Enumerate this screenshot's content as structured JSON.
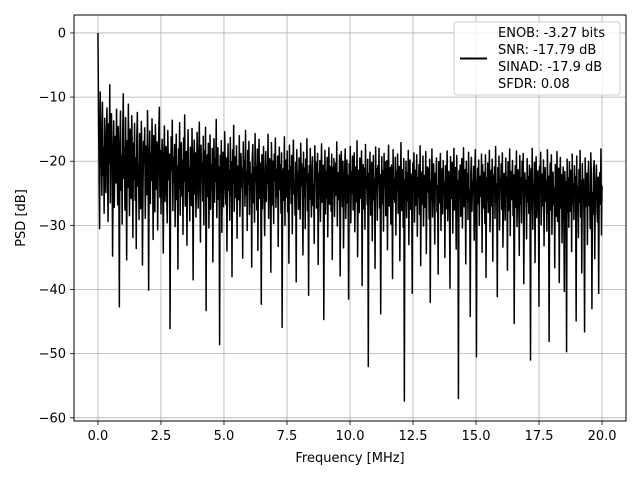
{
  "chart_data": {
    "type": "line",
    "title": "",
    "xlabel": "Frequency [MHz]",
    "ylabel": "PSD [dB]",
    "xlim": [
      -0.95,
      20.95
    ],
    "ylim": [
      -60.5,
      2.8
    ],
    "x_ticks": [
      0.0,
      2.5,
      5.0,
      7.5,
      10.0,
      12.5,
      15.0,
      17.5,
      20.0
    ],
    "x_tick_labels": [
      "0.0",
      "2.5",
      "5.0",
      "7.5",
      "10.0",
      "12.5",
      "15.0",
      "17.5",
      "20.0"
    ],
    "y_ticks": [
      0,
      -10,
      -20,
      -30,
      -40,
      -50,
      -60
    ],
    "y_tick_labels": [
      "0",
      "−10",
      "−20",
      "−30",
      "−40",
      "−50",
      "−60"
    ],
    "grid": true,
    "legend_position": "top-right",
    "line_color": "#000000",
    "series": [
      {
        "name": "",
        "x_start": 0,
        "x_end": 20,
        "values": [
          0.0,
          -12.1,
          -21.0,
          -30.5,
          -9.2,
          -14.4,
          -19.8,
          -25.3,
          -10.8,
          -22.2,
          -17.9,
          -28.1,
          -13.3,
          -19.6,
          -24.9,
          -16.5,
          -11.7,
          -21.8,
          -29.4,
          -14.2,
          -20.3,
          -8.1,
          -26.5,
          -15.9,
          -12.6,
          -18.4,
          -34.8,
          -22.1,
          -13.7,
          -27.2,
          -20.0,
          -16.1,
          -23.4,
          -11.9,
          -19.2,
          -26.8,
          -14.6,
          -21.7,
          -42.7,
          -17.3,
          -12.2,
          -24.5,
          -19.1,
          -29.8,
          -15.4,
          -9.5,
          -22.7,
          -18.0,
          -27.6,
          -13.2,
          -20.9,
          -35.4,
          -16.8,
          -24.1,
          -11.1,
          -19.7,
          -28.5,
          -15.0,
          -21.3,
          -25.8,
          -12.9,
          -18.6,
          -31.9,
          -17.2,
          -22.8,
          -14.1,
          -26.1,
          -19.5,
          -33.6,
          -16.3,
          -12.4,
          -23.9,
          -20.6,
          -29.1,
          -15.7,
          -21.2,
          -27.4,
          -13.8,
          -18.2,
          -36.2,
          -24.6,
          -16.9,
          -20.4,
          -14.8,
          -28.9,
          -22.3,
          -17.6,
          -25.2,
          -12.1,
          -19.9,
          -40.1,
          -21.1,
          -15.3,
          -26.6,
          -18.8,
          -23.0,
          -13.4,
          -20.7,
          -32.2,
          -16.0,
          -22.5,
          -27.9,
          -14.3,
          -19.3,
          -24.4,
          -17.0,
          -30.7,
          -21.9,
          -15.6,
          -11.6,
          -25.6,
          -18.3,
          -28.2,
          -20.2,
          -16.6,
          -23.6,
          -34.3,
          -19.0,
          -14.5,
          -26.3,
          -21.5,
          -17.7,
          -24.8,
          -29.6,
          -15.2,
          -20.1,
          -22.9,
          -18.9,
          -46.1,
          -25.0,
          -16.2,
          -21.4,
          -13.6,
          -27.7,
          -19.4,
          -23.3,
          -17.4,
          -30.2,
          -22.0,
          -15.8,
          -26.0,
          -20.8,
          -36.8,
          -18.1,
          -24.2,
          -14.0,
          -28.4,
          -21.6,
          -17.1,
          -25.4,
          -19.8,
          -31.4,
          -16.4,
          -23.1,
          -12.8,
          -27.0,
          -20.5,
          -18.5,
          -33.1,
          -22.6,
          -15.1,
          -24.7,
          -21.0,
          -29.3,
          -17.8,
          -19.6,
          -26.9,
          -14.9,
          -22.4,
          -38.5,
          -20.0,
          -16.7,
          -25.1,
          -18.7,
          -28.7,
          -23.5,
          -15.5,
          -21.8,
          -27.3,
          -19.2,
          -13.9,
          -24.0,
          -32.6,
          -17.5,
          -22.2,
          -20.3,
          -26.2,
          -16.1,
          -29.9,
          -18.4,
          -23.7,
          -14.7,
          -43.3,
          -21.3,
          -19.0,
          -25.5,
          -17.2,
          -30.4,
          -22.7,
          -15.9,
          -27.5,
          -20.6,
          -24.3,
          -18.0,
          -35.7,
          -21.9,
          -16.5,
          -26.4,
          -19.7,
          -23.2,
          -13.5,
          -28.8,
          -22.1,
          -17.9,
          -25.9,
          -20.9,
          -48.6,
          -19.1,
          -24.9,
          -16.8,
          -31.1,
          -21.2,
          -18.6,
          -27.1,
          -23.8,
          -15.4,
          -20.4,
          -26.7,
          -19.5,
          -34.0,
          -22.8,
          -17.3,
          -24.5,
          -21.4,
          -29.2,
          -16.3,
          -25.3,
          -20.1,
          -38.0,
          -18.2,
          -23.4,
          -14.4,
          -27.8,
          -21.7,
          -19.3,
          -25.7,
          -17.6,
          -32.0,
          -22.3,
          -20.7,
          -26.0,
          -16.0,
          -28.6,
          -23.9,
          -18.8,
          -24.1,
          -21.1,
          -35.1,
          -17.0,
          -22.6,
          -19.9,
          -27.0,
          -15.2,
          -25.2,
          -21.5,
          -30.8,
          -18.3,
          -23.6,
          -16.9,
          -28.3,
          -20.2,
          -24.6,
          -22.0,
          -36.5,
          -19.4,
          -17.4,
          -26.5,
          -21.0,
          -29.5,
          -15.7,
          -23.1,
          -20.8,
          -27.6,
          -18.1,
          -33.9,
          -22.9,
          -16.6,
          -25.8,
          -20.3,
          -24.2,
          -42.3,
          -19.0,
          -27.4,
          -21.6,
          -17.7,
          -25.0,
          -31.6,
          -22.4,
          -18.5,
          -26.3,
          -20.6,
          -23.5,
          -15.8,
          -28.9,
          -21.8,
          -19.6,
          -24.7,
          -37.3,
          -17.1,
          -22.2,
          -26.8,
          -20.0,
          -29.7,
          -18.9,
          -23.0,
          -16.4,
          -27.2,
          -21.3,
          -25.4,
          -19.2,
          -33.3,
          -22.5,
          -17.8,
          -24.4,
          -20.5,
          -28.1,
          -18.7,
          -45.9,
          -23.7,
          -21.2,
          -26.1,
          -16.2,
          -30.0,
          -19.8,
          -22.8,
          -25.6,
          -18.4,
          -27.9,
          -21.5,
          -35.9,
          -17.5,
          -24.0,
          -20.9,
          -26.6,
          -19.1,
          -31.3,
          -22.1,
          -16.7,
          -25.1,
          -23.3,
          -28.4,
          -20.2,
          -38.8,
          -18.2,
          -24.8,
          -21.7,
          -27.5,
          -19.5,
          -22.6,
          -29.0,
          -17.2,
          -23.8,
          -20.4,
          -26.2,
          -34.6,
          -18.6,
          -25.5,
          -21.1,
          -30.5,
          -19.7,
          -23.2,
          -16.5,
          -27.7,
          -22.0,
          -40.9,
          -20.7,
          -25.9,
          -18.0,
          -24.3,
          -28.7,
          -21.4,
          -19.3,
          -26.9,
          -23.6,
          -32.8,
          -17.6,
          -22.7,
          -20.1,
          -27.3,
          -24.5,
          -18.8,
          -36.1,
          -21.9,
          -25.2,
          -19.9,
          -29.4,
          -22.3,
          -17.3,
          -26.4,
          -23.9,
          -20.6,
          -44.7,
          -24.1,
          -18.3,
          -28.2,
          -21.6,
          -25.7,
          -19.4,
          -31.8,
          -22.9,
          -17.9,
          -26.7,
          -20.8,
          -23.4,
          -27.8,
          -18.9,
          -35.3,
          -21.0,
          -24.6,
          -19.6,
          -28.6,
          -22.4,
          -20.3,
          -25.3,
          -17.0,
          -30.1,
          -23.0,
          -21.8,
          -26.0,
          -19.0,
          -37.9,
          -24.9,
          -18.5,
          -22.8,
          -27.1,
          -20.0,
          -33.5,
          -25.6,
          -21.3,
          -18.1,
          -28.9,
          -23.5,
          -19.8,
          -26.5,
          -22.2,
          -41.5,
          -20.4,
          -24.4,
          -17.7,
          -29.6,
          -21.7,
          -25.0,
          -19.2,
          -27.6,
          -22.6,
          -18.7,
          -31.0,
          -23.8,
          -20.9,
          -26.3,
          -16.8,
          -34.9,
          -24.7,
          -21.4,
          -28.0,
          -19.5,
          -22.0,
          -25.8,
          -18.4,
          -39.4,
          -23.1,
          -20.5,
          -27.4,
          -21.1,
          -30.6,
          -17.4,
          -24.2,
          -22.5,
          -26.8,
          -19.7,
          -52.0,
          -21.9,
          -25.4,
          -18.6,
          -28.4,
          -23.3,
          -20.2,
          -32.4,
          -24.0,
          -19.1,
          -26.1,
          -22.7,
          -36.7,
          -17.8,
          -25.1,
          -21.2,
          -29.2,
          -20.7,
          -23.6,
          -18.0,
          -27.3,
          -22.1,
          -43.8,
          -24.8,
          -19.3,
          -26.6,
          -21.5,
          -30.9,
          -18.8,
          -23.9,
          -20.1,
          -28.5,
          -25.5,
          -19.9,
          -33.8,
          -22.3,
          -17.5,
          -27.0,
          -24.3,
          -21.0,
          -29.8,
          -20.6,
          -23.2,
          -38.3,
          -18.2,
          -25.9,
          -22.8,
          -26.4,
          -19.4,
          -31.5,
          -21.6,
          -24.5,
          -18.9,
          -28.1,
          -22.4,
          -20.8,
          -35.5,
          -23.7,
          -17.1,
          -27.7,
          -25.2,
          -21.3,
          -30.3,
          -19.6,
          -57.4,
          -22.9,
          -24.6,
          -20.0,
          -28.8,
          -21.8,
          -26.2,
          -18.3,
          -33.0,
          -23.4,
          -19.8,
          -27.5,
          -22.0,
          -25.0,
          -40.6,
          -20.3,
          -24.1,
          -18.7,
          -29.5,
          -21.4,
          -26.9,
          -23.0,
          -19.0,
          -31.7,
          -22.6,
          -25.6,
          -20.5,
          -28.3,
          -17.6,
          -36.3,
          -24.4,
          -21.7,
          -26.7,
          -19.2,
          -30.1,
          -23.6,
          -22.2,
          -27.2,
          -18.5,
          -34.4,
          -25.3,
          -20.9,
          -24.8,
          -21.1,
          -29.0,
          -19.7,
          -42.0,
          -23.1,
          -26.0,
          -18.1,
          -28.7,
          -22.5,
          -20.4,
          -25.7,
          -32.9,
          -21.9,
          -24.0,
          -19.5,
          -27.9,
          -23.8,
          -37.6,
          -20.1,
          -26.5,
          -22.7,
          -18.8,
          -30.8,
          -24.7,
          -21.2,
          -28.2,
          -19.9,
          -25.1,
          -23.3,
          -35.0,
          -20.7,
          -27.4,
          -22.1,
          -18.4,
          -29.3,
          -24.2,
          -21.6,
          -26.3,
          -39.8,
          -19.3,
          -23.5,
          -25.8,
          -20.2,
          -31.2,
          -22.8,
          -18.0,
          -27.6,
          -24.9,
          -21.0,
          -33.7,
          -19.1,
          -26.8,
          -23.0,
          -57.0,
          -21.5,
          -25.4,
          -20.6,
          -28.6,
          -22.4,
          -19.6,
          -30.4,
          -24.3,
          -17.9,
          -27.1,
          -23.7,
          -21.3,
          -36.0,
          -20.0,
          -25.9,
          -22.0,
          -29.1,
          -18.6,
          -26.1,
          -24.5,
          -44.2,
          -21.8,
          -19.4,
          -27.8,
          -23.2,
          -25.0,
          -20.8,
          -32.3,
          -22.9,
          -18.2,
          -28.4,
          -50.5,
          -24.6,
          -21.1,
          -26.6,
          -19.8,
          -30.0,
          -23.4,
          -22.3,
          -25.5,
          -18.9,
          -34.2,
          -20.5,
          -27.3,
          -24.1,
          -21.7,
          -29.7,
          -19.0,
          -38.1,
          -22.6,
          -26.2,
          -20.3,
          -28.0,
          -23.9,
          -18.3,
          -31.0,
          -25.2,
          -21.4,
          -27.0,
          -19.7,
          -35.6,
          -22.2,
          -24.8,
          -20.9,
          -28.9,
          -17.7,
          -26.4,
          -23.5,
          -41.1,
          -21.0,
          -25.7,
          -19.2,
          -30.7,
          -22.8,
          -24.0,
          -20.4,
          -27.5,
          -18.7,
          -33.4,
          -26.9,
          -21.9,
          -23.1,
          -29.2,
          -19.5,
          -25.3,
          -22.5,
          -37.0,
          -20.1,
          -27.7,
          -24.4,
          -18.1,
          -31.6,
          -21.6,
          -26.0,
          -23.8,
          -19.9,
          -28.5,
          -22.1,
          -45.3,
          -24.7,
          -20.7,
          -27.2,
          -18.4,
          -30.2,
          -25.6,
          -21.3,
          -23.3,
          -34.7,
          -19.1,
          -26.7,
          -22.6,
          -29.6,
          -20.0,
          -24.2,
          -18.8,
          -39.1,
          -27.9,
          -21.8,
          -25.1,
          -23.0,
          -32.1,
          -19.6,
          -26.3,
          -22.4,
          -28.1,
          -20.6,
          -24.9,
          -51.0,
          -21.2,
          -27.4,
          -18.0,
          -30.6,
          -23.6,
          -25.8,
          -20.2,
          -35.8,
          -22.7,
          -19.3,
          -28.8,
          -24.3,
          -21.5,
          -26.5,
          -42.6,
          -20.8,
          -23.4,
          -18.6,
          -29.9,
          -25.4,
          -22.0,
          -27.0,
          -19.8,
          -33.2,
          -24.6,
          -21.0,
          -26.2,
          -23.1,
          -30.9,
          -18.2,
          -28.2,
          -22.3,
          -48.1,
          -25.0,
          -20.3,
          -27.6,
          -19.0,
          -31.4,
          -23.9,
          -21.7,
          -26.8,
          -24.1,
          -36.6,
          -20.5,
          -22.9,
          -28.6,
          -18.5,
          -29.4,
          -25.5,
          -21.1,
          -38.9,
          -23.7,
          -19.4,
          -27.3,
          -22.1,
          -32.7,
          -24.4,
          -20.9,
          -26.1,
          -40.3,
          -21.6,
          -25.9,
          -23.2,
          -49.7,
          -19.7,
          -28.0,
          -22.6,
          -30.3,
          -20.1,
          -24.8,
          -27.8,
          -21.4,
          -34.1,
          -18.9,
          -26.6,
          -23.5,
          -29.1,
          -20.7,
          -25.2,
          -22.4,
          -44.9,
          -19.2,
          -27.5,
          -24.0,
          -31.9,
          -21.3,
          -26.4,
          -18.3,
          -28.7,
          -23.0,
          -37.4,
          -20.4,
          -25.7,
          -22.8,
          -29.8,
          -46.6,
          -19.5,
          -24.5,
          -27.1,
          -21.9,
          -33.0,
          -23.6,
          -20.0,
          -26.9,
          -25.1,
          -30.5,
          -18.7,
          -22.2,
          -43.0,
          -24.9,
          -28.3,
          -21.2,
          -19.9,
          -35.2,
          -26.0,
          -23.3,
          -20.6,
          -27.7,
          -29.5,
          -22.5,
          -40.6,
          -24.2,
          -21.8,
          -26.7,
          -18.1,
          -31.5,
          -23.8
        ]
      }
    ],
    "legend": {
      "lines": [
        "ENOB: -3.27 bits",
        "SNR: -17.79 dB",
        "SINAD: -17.9 dB",
        "SFDR: 0.08"
      ]
    }
  }
}
